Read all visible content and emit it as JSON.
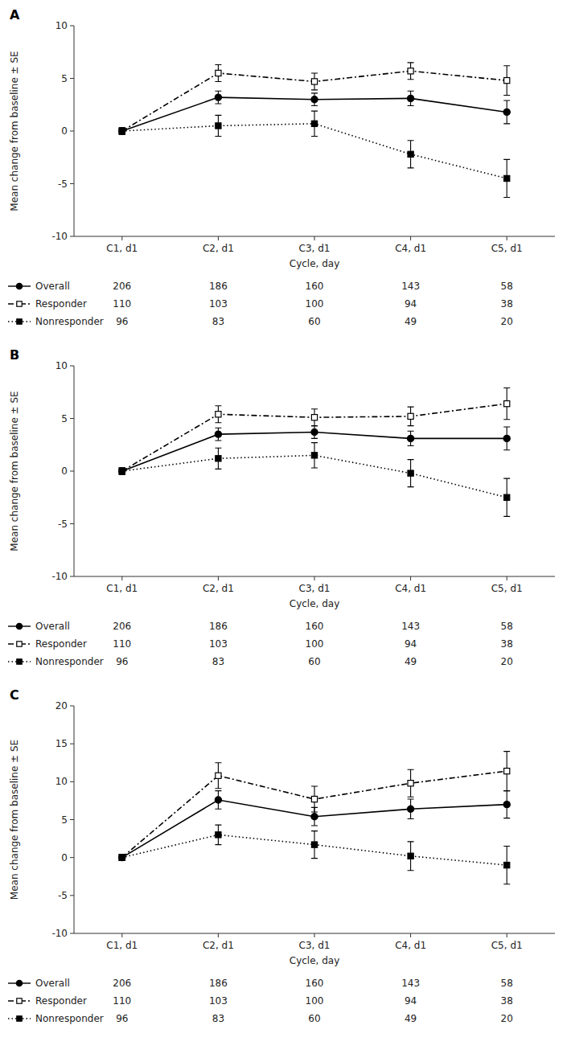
{
  "chart_data": [
    {
      "type": "line",
      "title": "A",
      "categories": [
        "C1, d1",
        "C2, d1",
        "C3, d1",
        "C4, d1",
        "C5, d1"
      ],
      "x_label": "Cycle, day",
      "y_label": "Mean change from baseline ± SE",
      "ylim": [
        -10,
        10
      ],
      "yticks": [
        -10,
        -5,
        0,
        5,
        10
      ],
      "series": [
        {
          "name": "Overall",
          "color": "#000000",
          "marker": "circle",
          "line_style": "solid",
          "values": [
            0,
            3.2,
            3.0,
            3.1,
            1.8
          ],
          "errors": [
            0.3,
            0.6,
            0.6,
            0.7,
            1.1
          ],
          "n": [
            206,
            186,
            160,
            143,
            58
          ]
        },
        {
          "name": "Responder",
          "color": "#000000",
          "marker": "square-open",
          "line_style": "dashdot",
          "values": [
            0,
            5.5,
            4.7,
            5.7,
            4.8
          ],
          "errors": [
            0.3,
            0.8,
            0.8,
            0.8,
            1.4
          ],
          "n": [
            110,
            103,
            100,
            94,
            38
          ]
        },
        {
          "name": "Nonresponder",
          "color": "#000000",
          "marker": "square",
          "line_style": "dotted",
          "values": [
            0,
            0.5,
            0.7,
            -2.2,
            -4.5
          ],
          "errors": [
            0.3,
            1.0,
            1.2,
            1.3,
            1.8
          ],
          "n": [
            96,
            83,
            60,
            49,
            20
          ]
        }
      ]
    },
    {
      "type": "line",
      "title": "B",
      "categories": [
        "C1, d1",
        "C2, d1",
        "C3, d1",
        "C4, d1",
        "C5, d1"
      ],
      "x_label": "Cycle, day",
      "y_label": "Mean change from baseline ± SE",
      "ylim": [
        -10,
        10
      ],
      "yticks": [
        -10,
        -5,
        0,
        5,
        10
      ],
      "series": [
        {
          "name": "Overall",
          "color": "#000000",
          "marker": "circle",
          "line_style": "solid",
          "values": [
            0,
            3.5,
            3.7,
            3.1,
            3.1
          ],
          "errors": [
            0.3,
            0.6,
            0.6,
            0.7,
            1.1
          ],
          "n": [
            206,
            186,
            160,
            143,
            58
          ]
        },
        {
          "name": "Responder",
          "color": "#000000",
          "marker": "square-open",
          "line_style": "dashdot",
          "values": [
            0,
            5.4,
            5.1,
            5.2,
            6.4
          ],
          "errors": [
            0.3,
            0.8,
            0.8,
            0.9,
            1.5
          ],
          "n": [
            110,
            103,
            100,
            94,
            38
          ]
        },
        {
          "name": "Nonresponder",
          "color": "#000000",
          "marker": "square",
          "line_style": "dotted",
          "values": [
            0,
            1.2,
            1.5,
            -0.2,
            -2.5
          ],
          "errors": [
            0.3,
            1.0,
            1.2,
            1.3,
            1.8
          ],
          "n": [
            96,
            83,
            60,
            49,
            20
          ]
        }
      ]
    },
    {
      "type": "line",
      "title": "C",
      "categories": [
        "C1, d1",
        "C2, d1",
        "C3, d1",
        "C4, d1",
        "C5, d1"
      ],
      "x_label": "Cycle, day",
      "y_label": "Mean change from baseline ± SE",
      "ylim": [
        -10,
        20
      ],
      "yticks": [
        -10,
        -5,
        0,
        5,
        10,
        15,
        20
      ],
      "series": [
        {
          "name": "Overall",
          "color": "#000000",
          "marker": "circle",
          "line_style": "solid",
          "values": [
            0,
            7.6,
            5.4,
            6.4,
            7.0
          ],
          "errors": [
            0.4,
            1.2,
            1.2,
            1.3,
            1.8
          ],
          "n": [
            206,
            186,
            160,
            143,
            58
          ]
        },
        {
          "name": "Responder",
          "color": "#000000",
          "marker": "square-open",
          "line_style": "dashdot",
          "values": [
            0,
            10.8,
            7.7,
            9.8,
            11.4
          ],
          "errors": [
            0.4,
            1.7,
            1.7,
            1.8,
            2.6
          ],
          "n": [
            110,
            103,
            100,
            94,
            38
          ]
        },
        {
          "name": "Nonresponder",
          "color": "#000000",
          "marker": "square",
          "line_style": "dotted",
          "values": [
            0,
            3.0,
            1.7,
            0.2,
            -1.0
          ],
          "errors": [
            0.4,
            1.3,
            1.8,
            1.9,
            2.5
          ],
          "n": [
            96,
            83,
            60,
            49,
            20
          ]
        }
      ]
    }
  ]
}
